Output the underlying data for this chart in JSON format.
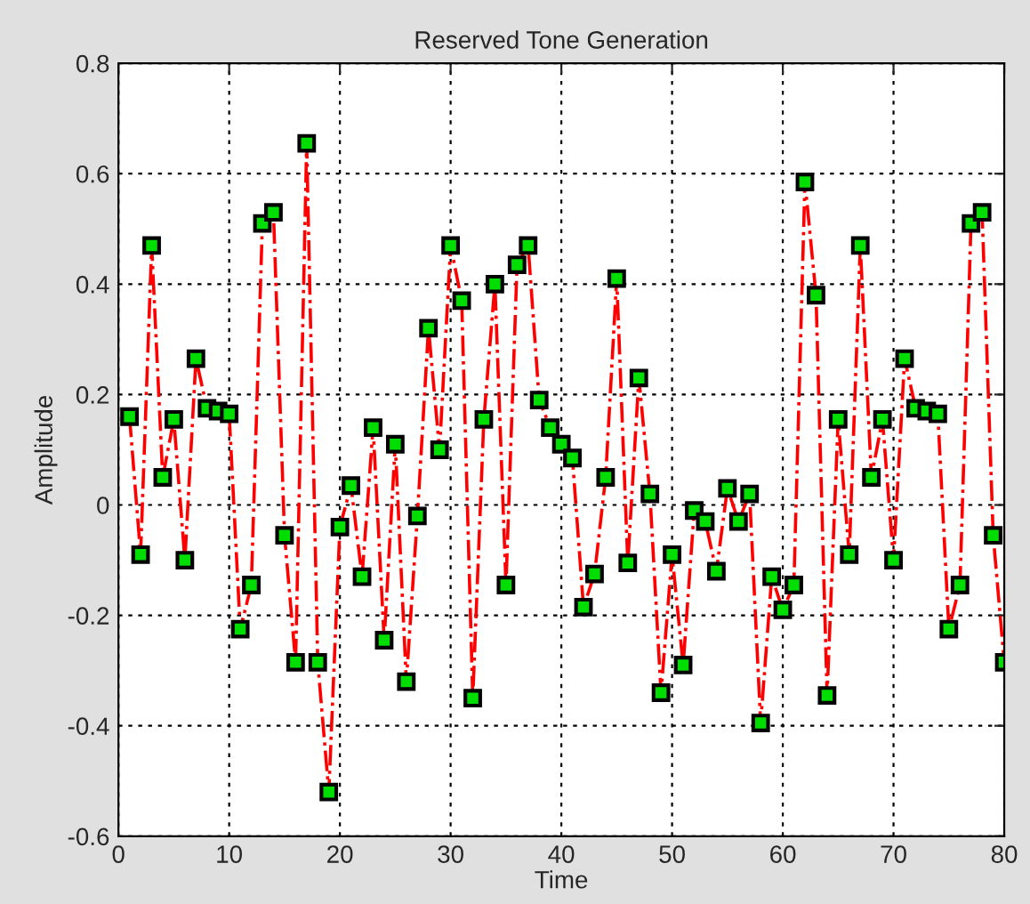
{
  "chart_data": {
    "type": "line",
    "title": "Reserved Tone Generation",
    "xlabel": "Time",
    "ylabel": "Amplitude",
    "x": [
      1,
      2,
      3,
      4,
      5,
      6,
      7,
      8,
      9,
      10,
      11,
      12,
      13,
      14,
      15,
      16,
      17,
      18,
      19,
      20,
      21,
      22,
      23,
      24,
      25,
      26,
      27,
      28,
      29,
      30,
      31,
      32,
      33,
      34,
      35,
      36,
      37,
      38,
      39,
      40,
      41,
      42,
      43,
      44,
      45,
      46,
      47,
      48,
      49,
      50,
      51,
      52,
      53,
      54,
      55,
      56,
      57,
      58,
      59,
      60,
      61,
      62,
      63,
      64,
      65,
      66,
      67,
      68,
      69,
      70,
      71,
      72,
      73,
      74,
      75,
      76,
      77,
      78,
      79,
      80
    ],
    "series": [
      {
        "color": "#ff0000",
        "values": [
          0.16,
          -0.09,
          0.47,
          0.05,
          0.155,
          -0.1,
          0.265,
          0.175,
          0.17,
          0.165,
          -0.225,
          -0.145,
          0.51,
          0.53,
          -0.055,
          -0.285,
          0.655,
          -0.285,
          -0.52,
          -0.04,
          0.035,
          -0.13,
          0.14,
          -0.245,
          0.11,
          -0.32,
          -0.02,
          0.32,
          0.1,
          0.47,
          0.37,
          -0.35,
          0.155,
          0.4,
          -0.145,
          0.435,
          0.47,
          0.19,
          0.14,
          0.11,
          0.085,
          -0.185,
          -0.125,
          0.05,
          0.41,
          -0.105,
          0.23,
          0.02,
          -0.34,
          -0.09,
          -0.29,
          -0.01,
          -0.03,
          -0.12,
          0.03,
          -0.03,
          0.02,
          -0.395,
          -0.13,
          -0.19,
          -0.145,
          0.585,
          0.38,
          -0.345,
          0.155,
          -0.09,
          0.47,
          0.05,
          0.155,
          -0.1,
          0.265,
          0.175,
          0.17,
          0.165,
          -0.225,
          -0.145,
          0.51,
          0.53,
          -0.055,
          -0.285
        ]
      }
    ],
    "xlim": [
      0,
      80
    ],
    "xticks": [
      0,
      10,
      20,
      30,
      40,
      50,
      60,
      70,
      80
    ],
    "ylim": [
      -0.6,
      0.8
    ],
    "yticks": [
      -0.6,
      -0.4,
      -0.2,
      0,
      0.2,
      0.4,
      0.6,
      0.8
    ],
    "grid": true,
    "marker": "square",
    "line_style": "dashdot"
  }
}
